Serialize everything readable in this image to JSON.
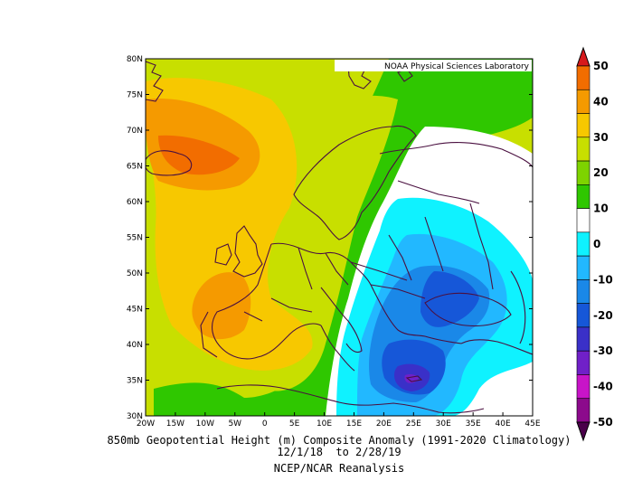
{
  "credit": "NOAA Physical Sciences Laboratory",
  "title_line1": "850mb Geopotential Height (m) Composite Anomaly (1991-2020 Climatology)",
  "title_line2": "12/1/18  to 2/28/19",
  "title_line3": "NCEP/NCAR Reanalysis",
  "map": {
    "lon_ticks": [
      "20W",
      "15W",
      "10W",
      "5W",
      "0",
      "5E",
      "10E",
      "15E",
      "20E",
      "25E",
      "30E",
      "35E",
      "40E",
      "45E"
    ],
    "lat_ticks": [
      "30N",
      "35N",
      "40N",
      "45N",
      "50N",
      "55N",
      "60N",
      "65N",
      "70N",
      "75N",
      "80N"
    ],
    "lon_range": [
      -20,
      45
    ],
    "lat_range": [
      30,
      80
    ]
  },
  "colorbar": {
    "labels": [
      "50",
      "40",
      "30",
      "20",
      "10",
      "0",
      "-10",
      "-20",
      "-30",
      "-40",
      "-50"
    ],
    "colors": [
      "#d7191c",
      "#f26d00",
      "#f59a00",
      "#f7c800",
      "#c8df00",
      "#7ed300",
      "#2fc700",
      "#ffffff",
      "#0ff2ff",
      "#22b8ff",
      "#1a88e8",
      "#1657d8",
      "#3a30c8",
      "#7020c8",
      "#c814c8",
      "#8c0a8c",
      "#4a004a"
    ],
    "range": [
      -50,
      50
    ]
  },
  "chart_data": {
    "type": "heatmap",
    "variable": "850mb Geopotential Height (m) Composite Anomaly",
    "climatology": "1991-2020",
    "period": "12/1/18 to 2/28/19",
    "source": "NCEP/NCAR Reanalysis",
    "lon_range": [
      -20,
      45
    ],
    "lat_range": [
      30,
      80
    ],
    "value_range": [
      -50,
      50
    ],
    "features": [
      {
        "label": "max",
        "lon": -12,
        "lat": 66,
        "value": 38
      },
      {
        "label": "max",
        "lon": -9,
        "lat": 45,
        "value": 33
      },
      {
        "label": "min",
        "lon": 25,
        "lat": 35,
        "value": -36
      },
      {
        "label": "min",
        "lon": 29,
        "lat": 49,
        "value": -20
      }
    ]
  }
}
